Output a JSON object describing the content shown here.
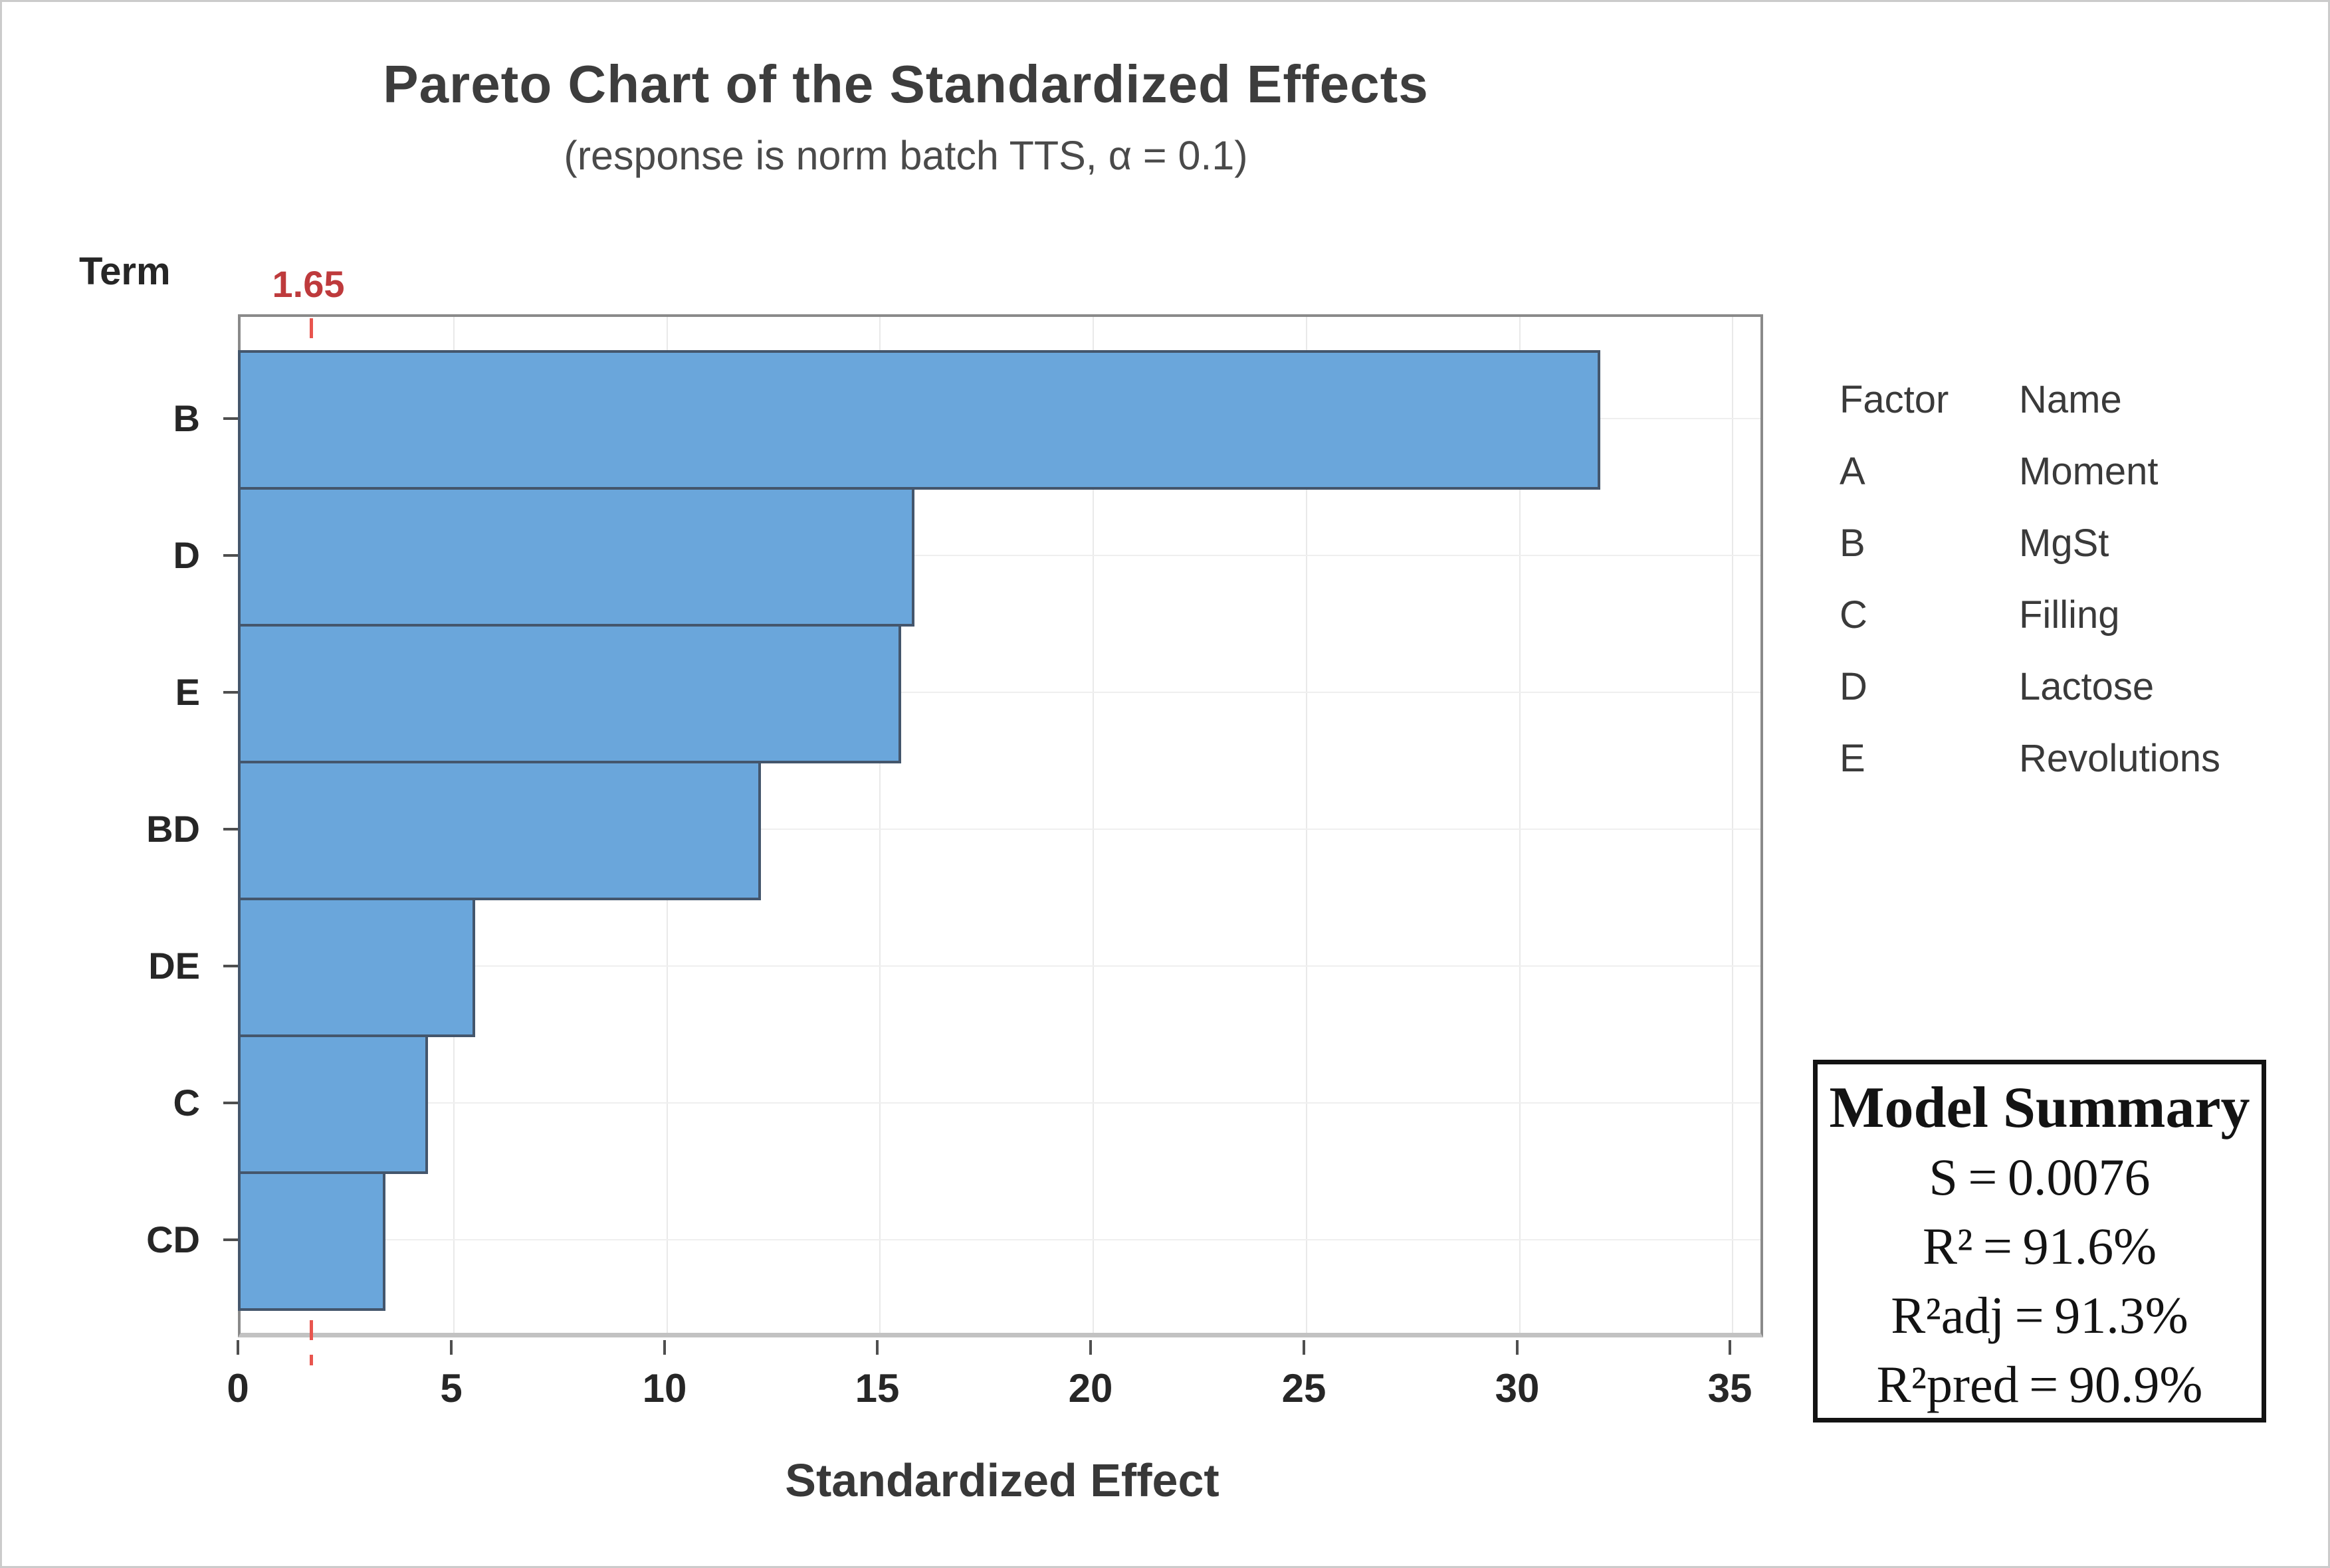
{
  "title": "Pareto Chart of the Standardized Effects",
  "subtitle": "(response is norm batch TTS, α = 0.1)",
  "y_axis_title": "Term",
  "x_axis_title": "Standardized Effect",
  "reference_line": {
    "label": "1.65",
    "value": 1.65,
    "line_color": "#e8554e",
    "label_color": "#be3a3c"
  },
  "chart_data": {
    "type": "bar",
    "orientation": "horizontal",
    "title": "Pareto Chart of the Standardized Effects",
    "subtitle": "(response is norm batch TTS, α = 0.1)",
    "xlabel": "Standardized Effect",
    "ylabel": "Term",
    "categories": [
      "B",
      "D",
      "E",
      "BD",
      "DE",
      "C",
      "CD"
    ],
    "values": [
      31.9,
      15.8,
      15.5,
      12.2,
      5.5,
      4.4,
      3.4
    ],
    "x_ticks": [
      0,
      5,
      10,
      15,
      20,
      25,
      30,
      35
    ],
    "xlim": [
      0,
      35.65
    ],
    "reference_value": 1.65,
    "grid": "on",
    "bar_color": "#6aa6db",
    "bar_edge_color": "#44566c"
  },
  "legend": {
    "headers": [
      "Factor",
      "Name"
    ],
    "rows": [
      [
        "A",
        "Moment"
      ],
      [
        "B",
        "MgSt"
      ],
      [
        "C",
        "Filling"
      ],
      [
        "D",
        "Lactose"
      ],
      [
        "E",
        "Revolutions"
      ]
    ]
  },
  "model_summary": {
    "title": "Model Summary",
    "lines": [
      "S = 0.0076",
      "R² = 91.6%",
      "R²adj = 91.3%",
      "R²pred = 90.9%"
    ]
  }
}
